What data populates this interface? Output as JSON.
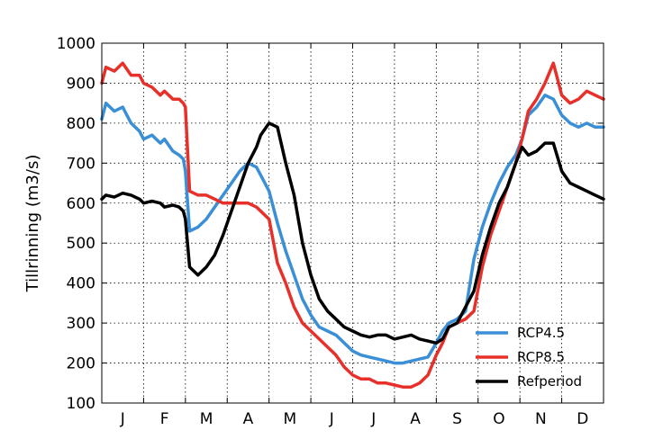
{
  "chart_data": {
    "type": "line",
    "title": "",
    "xlabel": "",
    "ylabel": "Tillrinning (m3/s)",
    "ylim": [
      100,
      1000
    ],
    "yticks": [
      100,
      200,
      300,
      400,
      500,
      600,
      700,
      800,
      900,
      1000
    ],
    "categories": [
      "J",
      "F",
      "M",
      "A",
      "M",
      "J",
      "J",
      "A",
      "S",
      "O",
      "N",
      "D"
    ],
    "grid": true,
    "legend_position": "lower-right",
    "series": [
      {
        "name": "RCP4.5",
        "color": "#3a8fd6",
        "x": [
          0,
          0.1,
          0.3,
          0.5,
          0.7,
          0.9,
          1.0,
          1.2,
          1.4,
          1.5,
          1.7,
          1.85,
          1.95,
          2.0,
          2.1,
          2.3,
          2.5,
          2.7,
          2.9,
          3.1,
          3.3,
          3.5,
          3.7,
          3.8,
          4.0,
          4.2,
          4.4,
          4.6,
          4.8,
          5.0,
          5.2,
          5.4,
          5.6,
          5.8,
          6.0,
          6.2,
          6.4,
          6.6,
          6.8,
          7.0,
          7.2,
          7.4,
          7.6,
          7.8,
          8.0,
          8.15,
          8.3,
          8.5,
          8.7,
          8.9,
          9.1,
          9.3,
          9.5,
          9.7,
          9.9,
          10.05,
          10.2,
          10.4,
          10.6,
          10.8,
          11.0,
          11.2,
          11.4,
          11.6,
          11.8,
          12.0
        ],
        "values": [
          810,
          850,
          830,
          840,
          800,
          780,
          760,
          770,
          750,
          760,
          730,
          720,
          710,
          680,
          530,
          540,
          560,
          590,
          620,
          650,
          680,
          700,
          690,
          670,
          630,
          550,
          480,
          420,
          360,
          320,
          290,
          280,
          270,
          250,
          230,
          220,
          215,
          210,
          205,
          200,
          200,
          205,
          210,
          215,
          250,
          280,
          300,
          310,
          330,
          460,
          540,
          600,
          650,
          690,
          720,
          760,
          820,
          840,
          870,
          860,
          820,
          800,
          790,
          800,
          790,
          790
        ]
      },
      {
        "name": "RCP8.5",
        "color": "#e8302a",
        "x": [
          0,
          0.1,
          0.3,
          0.5,
          0.7,
          0.9,
          1.0,
          1.2,
          1.4,
          1.5,
          1.7,
          1.85,
          1.95,
          2.0,
          2.1,
          2.3,
          2.5,
          2.7,
          2.9,
          3.1,
          3.3,
          3.5,
          3.7,
          3.8,
          4.0,
          4.2,
          4.4,
          4.6,
          4.8,
          5.0,
          5.2,
          5.4,
          5.6,
          5.8,
          6.0,
          6.2,
          6.4,
          6.6,
          6.8,
          7.0,
          7.2,
          7.4,
          7.6,
          7.8,
          8.0,
          8.15,
          8.3,
          8.5,
          8.7,
          8.9,
          9.1,
          9.3,
          9.5,
          9.7,
          9.9,
          10.05,
          10.2,
          10.4,
          10.6,
          10.8,
          11.0,
          11.2,
          11.4,
          11.6,
          11.8,
          12.0
        ],
        "values": [
          900,
          940,
          930,
          950,
          920,
          920,
          900,
          890,
          870,
          880,
          860,
          860,
          850,
          840,
          630,
          620,
          620,
          610,
          600,
          600,
          600,
          600,
          590,
          580,
          560,
          450,
          400,
          340,
          300,
          280,
          260,
          240,
          220,
          190,
          170,
          160,
          160,
          150,
          150,
          145,
          140,
          140,
          150,
          170,
          220,
          250,
          290,
          300,
          310,
          330,
          440,
          520,
          580,
          640,
          700,
          760,
          830,
          860,
          900,
          950,
          870,
          850,
          860,
          880,
          870,
          860
        ]
      },
      {
        "name": "Refperiod",
        "color": "#000000",
        "x": [
          0,
          0.1,
          0.3,
          0.5,
          0.7,
          0.9,
          1.0,
          1.2,
          1.4,
          1.5,
          1.7,
          1.85,
          1.95,
          2.0,
          2.1,
          2.3,
          2.5,
          2.7,
          2.9,
          3.1,
          3.3,
          3.5,
          3.7,
          3.8,
          4.0,
          4.2,
          4.4,
          4.6,
          4.8,
          5.0,
          5.2,
          5.4,
          5.6,
          5.8,
          6.0,
          6.2,
          6.4,
          6.6,
          6.8,
          7.0,
          7.2,
          7.4,
          7.6,
          7.8,
          8.0,
          8.15,
          8.3,
          8.5,
          8.7,
          8.9,
          9.1,
          9.3,
          9.5,
          9.7,
          9.9,
          10.05,
          10.2,
          10.4,
          10.6,
          10.8,
          11.0,
          11.2,
          11.4,
          11.6,
          11.8,
          12.0
        ],
        "values": [
          610,
          620,
          615,
          625,
          620,
          610,
          600,
          605,
          600,
          590,
          595,
          590,
          580,
          560,
          440,
          420,
          440,
          470,
          520,
          580,
          640,
          700,
          740,
          770,
          800,
          790,
          700,
          620,
          500,
          420,
          360,
          330,
          310,
          290,
          280,
          270,
          265,
          270,
          270,
          260,
          265,
          270,
          260,
          255,
          250,
          260,
          290,
          300,
          340,
          380,
          470,
          540,
          600,
          640,
          700,
          740,
          720,
          730,
          750,
          750,
          680,
          650,
          640,
          630,
          620,
          610
        ]
      }
    ]
  }
}
